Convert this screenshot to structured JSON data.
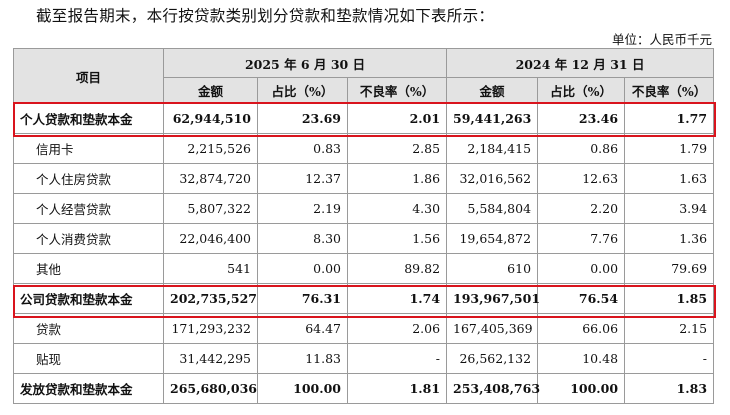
{
  "intro": "截至报告期末，本行按贷款类别划分贷款和垫款情况如下表所示：",
  "unit": "单位：人民币千元",
  "header": {
    "item": "项目",
    "period1": "2025 年 6 月 30 日",
    "period2": "2024 年 12 月 31 日",
    "sub": [
      "金额",
      "占比（%）",
      "不良率（%）",
      "金额",
      "占比（%）",
      "不良率（%）"
    ]
  },
  "rows": [
    {
      "label": "个人贷款和垫款本金",
      "values": [
        "62,944,510",
        "23.69",
        "2.01",
        "59,441,263",
        "23.46",
        "1.77"
      ]
    },
    {
      "label": "信用卡",
      "values": [
        "2,215,526",
        "0.83",
        "2.85",
        "2,184,415",
        "0.86",
        "1.79"
      ]
    },
    {
      "label": "个人住房贷款",
      "values": [
        "32,874,720",
        "12.37",
        "1.86",
        "32,016,562",
        "12.63",
        "1.63"
      ]
    },
    {
      "label": "个人经营贷款",
      "values": [
        "5,807,322",
        "2.19",
        "4.30",
        "5,584,804",
        "2.20",
        "3.94"
      ]
    },
    {
      "label": "个人消费贷款",
      "values": [
        "22,046,400",
        "8.30",
        "1.56",
        "19,654,872",
        "7.76",
        "1.36"
      ]
    },
    {
      "label": "其他",
      "values": [
        "541",
        "0.00",
        "89.82",
        "610",
        "0.00",
        "79.69"
      ]
    },
    {
      "label": "公司贷款和垫款本金",
      "values": [
        "202,735,527",
        "76.31",
        "1.74",
        "193,967,501",
        "76.54",
        "1.85"
      ]
    },
    {
      "label": "贷款",
      "values": [
        "171,293,232",
        "64.47",
        "2.06",
        "167,405,369",
        "66.06",
        "2.15"
      ]
    },
    {
      "label": "贴现",
      "values": [
        "31,442,295",
        "11.83",
        "-",
        "26,562,132",
        "10.48",
        "-"
      ]
    },
    {
      "label": "发放贷款和垫款本金",
      "values": [
        "265,680,036",
        "100.00",
        "1.81",
        "253,408,763",
        "100.00",
        "1.83"
      ]
    }
  ]
}
